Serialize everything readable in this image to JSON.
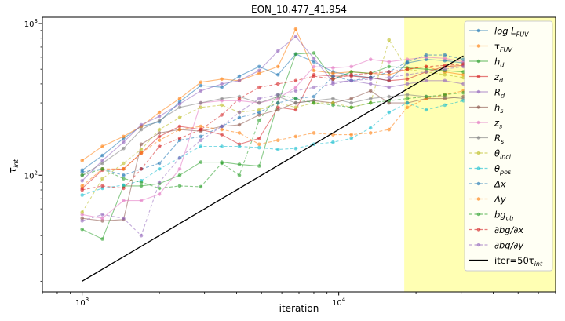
{
  "chart_data": {
    "type": "line",
    "title": "EON_10.477_41.954",
    "xlabel": "iteration",
    "ylabel_base": "τ",
    "ylabel_sub": "int",
    "x_scale": "log",
    "y_scale": "log",
    "xlim": [
      700,
      70000
    ],
    "ylim": [
      17,
      1100
    ],
    "x_ticks": [
      {
        "value": 1000,
        "base": "10",
        "exp": "3"
      },
      {
        "value": 10000,
        "base": "10",
        "exp": "4"
      }
    ],
    "y_ticks": [
      {
        "value": 100,
        "base": "10",
        "exp": "2"
      },
      {
        "value": 1000,
        "base": "10",
        "exp": "3"
      }
    ],
    "shaded_region": {
      "x_start": 18000,
      "x_end": 70000,
      "color": "#ffffb3"
    },
    "x": [
      1000,
      1200,
      1450,
      1700,
      2000,
      2400,
      2900,
      3500,
      4100,
      4900,
      5800,
      6800,
      8000,
      9500,
      11200,
      13300,
      15700,
      18500,
      21900,
      25900,
      30600
    ],
    "series": [
      {
        "label_main": "log L",
        "label_sub": "FUV",
        "italic": true,
        "color": "#1f77b4",
        "dash": "solid",
        "values": [
          108,
          135,
          175,
          210,
          225,
          305,
          390,
          380,
          450,
          520,
          460,
          630,
          560,
          480,
          455,
          440,
          420,
          550,
          580,
          570,
          550
        ]
      },
      {
        "label_main": "τ",
        "label_sub": "FUV",
        "italic": false,
        "color": "#ff7f0e",
        "dash": "solid",
        "values": [
          125,
          155,
          180,
          210,
          260,
          320,
          410,
          430,
          420,
          470,
          520,
          920,
          490,
          470,
          480,
          470,
          460,
          500,
          520,
          480,
          460
        ]
      },
      {
        "label_main": "h",
        "label_sub": "d",
        "italic": true,
        "color": "#2ca02c",
        "dash": "solid",
        "values": [
          44,
          38,
          85,
          85,
          88,
          100,
          122,
          122,
          118,
          115,
          300,
          630,
          640,
          430,
          480,
          470,
          520,
          510,
          500,
          490,
          480
        ]
      },
      {
        "label_main": "z",
        "label_sub": "d",
        "italic": true,
        "color": "#d62728",
        "dash": "solid",
        "values": [
          82,
          108,
          110,
          140,
          180,
          210,
          200,
          185,
          160,
          175,
          280,
          270,
          460,
          450,
          450,
          440,
          420,
          430,
          480,
          520,
          530
        ]
      },
      {
        "label_main": "R",
        "label_sub": "d",
        "italic": true,
        "color": "#9467bd",
        "dash": "solid",
        "values": [
          92,
          125,
          165,
          215,
          245,
          295,
          360,
          400,
          420,
          490,
          660,
          820,
          590,
          410,
          420,
          400,
          380,
          400,
          420,
          420,
          400
        ]
      },
      {
        "label_main": "h",
        "label_sub": "s",
        "italic": true,
        "color": "#8c564b",
        "dash": "solid",
        "values": [
          52,
          50,
          51,
          160,
          190,
          200,
          195,
          210,
          215,
          250,
          270,
          300,
          310,
          300,
          320,
          360,
          300,
          300,
          320,
          320,
          330
        ]
      },
      {
        "label_main": "z",
        "label_sub": "s",
        "italic": true,
        "color": "#e377c2",
        "dash": "solid",
        "values": [
          55,
          52,
          68,
          68,
          75,
          110,
          300,
          310,
          310,
          300,
          320,
          380,
          520,
          510,
          520,
          580,
          560,
          580,
          600,
          590,
          560
        ]
      },
      {
        "label_main": "R",
        "label_sub": "s",
        "italic": true,
        "color": "#7f7f7f",
        "dash": "solid",
        "values": [
          100,
          120,
          150,
          200,
          230,
          280,
          300,
          320,
          330,
          300,
          330,
          300,
          310,
          320,
          300,
          320,
          330,
          340,
          330,
          330,
          320
        ]
      },
      {
        "label_main": "θ",
        "label_sub": "incl",
        "italic": true,
        "color": "#bcbd22",
        "dash": "dashed",
        "values": [
          57,
          95,
          120,
          148,
          200,
          240,
          280,
          290,
          260,
          270,
          300,
          280,
          300,
          300,
          280,
          300,
          780,
          500,
          480,
          460,
          440
        ]
      },
      {
        "label_main": "θ",
        "label_sub": "pos",
        "italic": true,
        "color": "#17becf",
        "dash": "dashed",
        "values": [
          74,
          82,
          86,
          92,
          110,
          130,
          155,
          155,
          155,
          152,
          148,
          150,
          160,
          165,
          175,
          205,
          260,
          300,
          270,
          290,
          310
        ]
      },
      {
        "label_main": "Δx",
        "label_sub": "",
        "italic": true,
        "color": "#1f77b4",
        "dash": "dashed",
        "values": [
          105,
          110,
          100,
          110,
          120,
          170,
          180,
          210,
          240,
          260,
          300,
          320,
          330,
          450,
          420,
          440,
          480,
          560,
          620,
          620,
          580
        ]
      },
      {
        "label_main": "Δy",
        "label_sub": "",
        "italic": true,
        "color": "#ff7f0e",
        "dash": "dashed",
        "values": [
          85,
          110,
          110,
          140,
          170,
          200,
          210,
          200,
          190,
          160,
          170,
          180,
          190,
          185,
          185,
          190,
          200,
          280,
          320,
          340,
          360
        ]
      },
      {
        "label_main": "bg",
        "label_sub": "ctr",
        "italic": true,
        "color": "#2ca02c",
        "dash": "dashed",
        "values": [
          100,
          110,
          95,
          90,
          82,
          85,
          84,
          120,
          100,
          230,
          340,
          320,
          300,
          290,
          280,
          300,
          310,
          320,
          330,
          340,
          350
        ]
      },
      {
        "label_main": "∂bg/∂x",
        "label_sub": "",
        "italic": true,
        "color": "#d62728",
        "dash": "dashed",
        "values": [
          80,
          85,
          82,
          110,
          155,
          175,
          200,
          250,
          320,
          380,
          400,
          420,
          450,
          430,
          460,
          470,
          480,
          500,
          520,
          530,
          540
        ]
      },
      {
        "label_main": "∂bg/∂y",
        "label_sub": "",
        "italic": true,
        "color": "#9467bd",
        "dash": "dashed",
        "values": [
          50,
          55,
          52,
          40,
          90,
          130,
          170,
          210,
          260,
          320,
          340,
          360,
          380,
          400,
          420,
          430,
          440,
          460,
          480,
          500,
          520
        ]
      }
    ],
    "reference_line": {
      "label": "iter=50τ",
      "label_sub": "int",
      "color": "#000000",
      "x": [
        1000,
        30600
      ],
      "y": [
        20,
        612
      ]
    },
    "grid": false,
    "legend_position": "top-right"
  }
}
